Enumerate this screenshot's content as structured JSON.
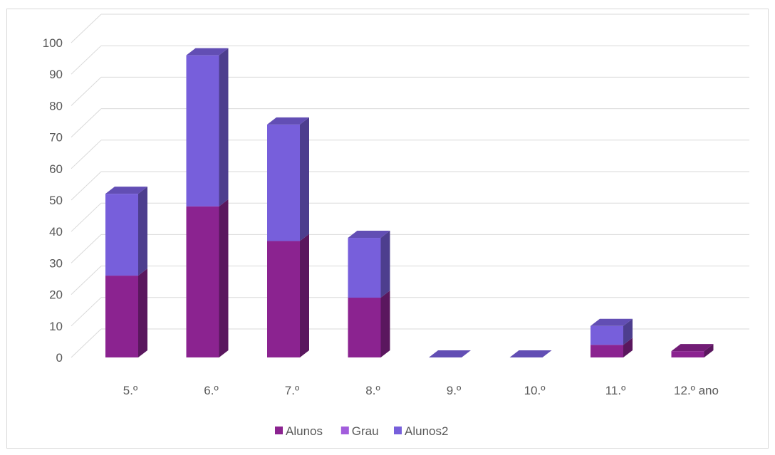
{
  "chart_data": {
    "type": "bar",
    "stacked": true,
    "three_d": true,
    "title": "",
    "xlabel": "",
    "ylabel": "",
    "categories": [
      "5.º",
      "6.º",
      "7.º",
      "8.º",
      "9.º",
      "10.º",
      "11.º",
      "12.º ano"
    ],
    "series": [
      {
        "name": "Alunos",
        "color": "#8B2390",
        "values": [
          26,
          48,
          37,
          19,
          0,
          0,
          4,
          2
        ]
      },
      {
        "name": "Grau",
        "color": "#A25DDC",
        "values": [
          0,
          0,
          0,
          0,
          0,
          0,
          0,
          0
        ]
      },
      {
        "name": "Alunos2",
        "color": "#775FDB",
        "values": [
          26,
          48,
          37,
          19,
          0,
          0,
          6,
          0
        ]
      }
    ],
    "ylim": [
      0,
      100
    ],
    "yticks": [
      0,
      10,
      20,
      30,
      40,
      50,
      60,
      70,
      80,
      90,
      100
    ],
    "grid": true,
    "legend": "bottom"
  }
}
